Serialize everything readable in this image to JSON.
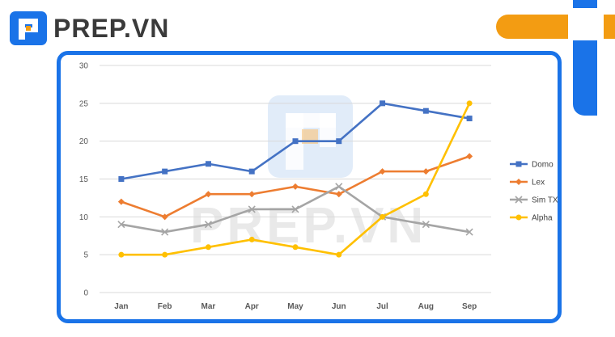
{
  "brand": {
    "name": "PREP.VN",
    "logo_icon": "prep-logo-icon"
  },
  "watermark": {
    "text": "PREP.VN"
  },
  "colors": {
    "accent_blue": "#1a73e8",
    "accent_orange": "#f39c12"
  },
  "chart_data": {
    "type": "line",
    "title": "",
    "xlabel": "",
    "ylabel": "",
    "categories": [
      "Jan",
      "Feb",
      "Mar",
      "Apr",
      "May",
      "Jun",
      "Jul",
      "Aug",
      "Sep"
    ],
    "ylim": [
      0,
      30
    ],
    "yticks": [
      0,
      5,
      10,
      15,
      20,
      25,
      30
    ],
    "grid": "horizontal",
    "legend_position": "right",
    "series": [
      {
        "name": "Domo",
        "color": "#4472c4",
        "marker": "square",
        "values": [
          15,
          16,
          17,
          16,
          20,
          20,
          25,
          24,
          23
        ]
      },
      {
        "name": "Lex",
        "color": "#ed7d31",
        "marker": "diamond",
        "values": [
          12,
          10,
          13,
          13,
          14,
          13,
          16,
          16,
          18
        ]
      },
      {
        "name": "Sim TX",
        "color": "#a5a5a5",
        "marker": "x",
        "values": [
          9,
          8,
          9,
          11,
          11,
          14,
          10,
          9,
          8
        ]
      },
      {
        "name": "Alpha",
        "color": "#ffc000",
        "marker": "circle",
        "values": [
          5,
          5,
          6,
          7,
          6,
          5,
          10,
          13,
          25
        ]
      }
    ]
  }
}
